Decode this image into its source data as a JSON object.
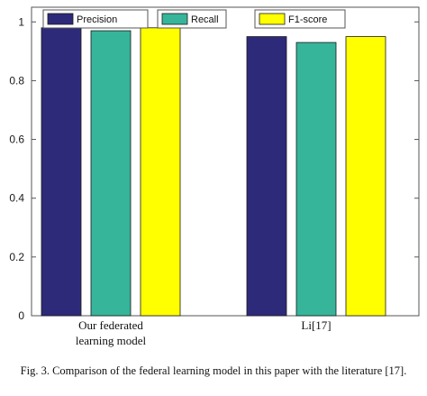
{
  "chart_data": {
    "type": "bar",
    "categories": [
      [
        "Our federated",
        "learning model"
      ],
      [
        "Li[17]"
      ]
    ],
    "series": [
      {
        "name": "Precision",
        "color": "#2e2a7a",
        "values": [
          0.98,
          0.95
        ]
      },
      {
        "name": "Recall",
        "color": "#36b59a",
        "values": [
          0.97,
          0.93
        ]
      },
      {
        "name": "F1-score",
        "color": "#ffff00",
        "values": [
          0.98,
          0.95
        ]
      }
    ],
    "ylim": [
      0,
      1.05
    ],
    "yticks": [
      0,
      0.2,
      0.4,
      0.6,
      0.8,
      1
    ],
    "ytick_labels": [
      "0",
      "0.2",
      "0.4",
      "0.6",
      "0.8",
      "1"
    ],
    "grid": false,
    "legend_position": "top"
  },
  "caption": "Fig. 3. Comparison of the federal learning model in this paper with the literature [17]."
}
